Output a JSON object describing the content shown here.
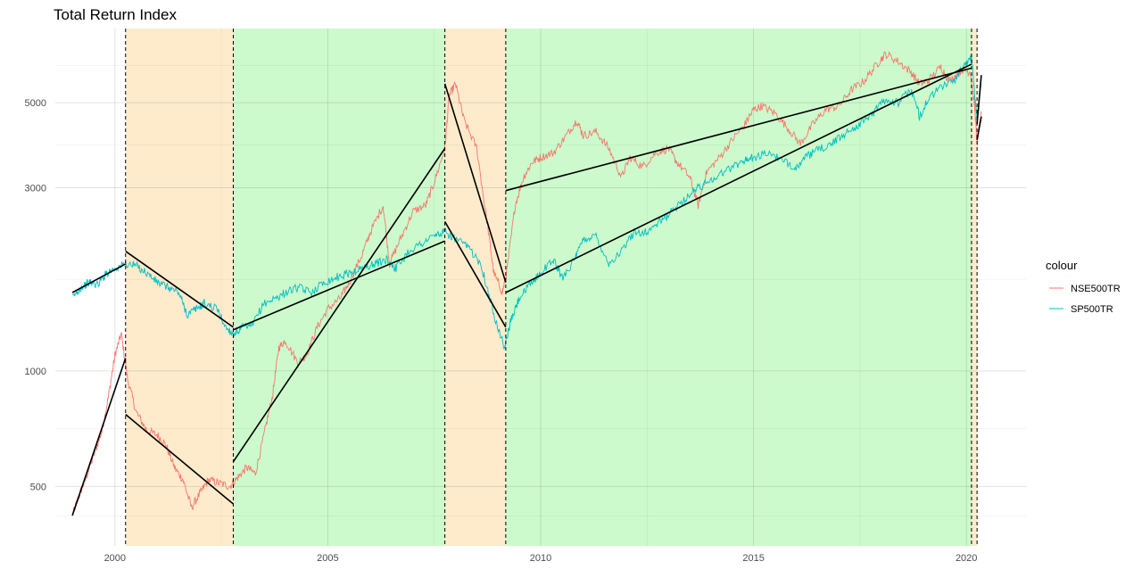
{
  "chart_data": {
    "type": "line",
    "title": "Total Return Index",
    "xlabel": "",
    "ylabel": "",
    "y_scale": "log",
    "xlim": [
      1998.6,
      2021.4
    ],
    "ylim": [
      350,
      7800
    ],
    "x_ticks": [
      {
        "value": 2000,
        "label": "2000"
      },
      {
        "value": 2005,
        "label": "2005"
      },
      {
        "value": 2010,
        "label": "2010"
      },
      {
        "value": 2015,
        "label": "2015"
      },
      {
        "value": 2020,
        "label": "2020"
      }
    ],
    "y_ticks": [
      {
        "value": 500,
        "label": "500"
      },
      {
        "value": 1000,
        "label": "1000"
      },
      {
        "value": 3000,
        "label": "3000"
      },
      {
        "value": 5000,
        "label": "5000"
      }
    ],
    "grid": true,
    "legend": {
      "title": "colour",
      "position": "right"
    },
    "regimes": [
      {
        "start": 2000.25,
        "end": 2002.78,
        "type": "bear",
        "color": "#FDEBCC"
      },
      {
        "start": 2002.78,
        "end": 2007.75,
        "type": "bull",
        "color": "#CCFACC"
      },
      {
        "start": 2007.75,
        "end": 2009.18,
        "type": "bear",
        "color": "#FDEBCC"
      },
      {
        "start": 2009.18,
        "end": 2020.12,
        "type": "bull",
        "color": "#CCFACC"
      },
      {
        "start": 2020.12,
        "end": 2020.25,
        "type": "bear",
        "color": "#FDEBCC"
      }
    ],
    "breakpoints": [
      2000.25,
      2002.78,
      2007.75,
      2009.18,
      2020.12,
      2020.25
    ],
    "series": [
      {
        "name": "NSE500TR",
        "color": "#F8766D",
        "points": [
          [
            1999.0,
            420
          ],
          [
            1999.15,
            470
          ],
          [
            1999.3,
            520
          ],
          [
            1999.5,
            600
          ],
          [
            1999.7,
            700
          ],
          [
            1999.85,
            860
          ],
          [
            2000.0,
            1100
          ],
          [
            2000.15,
            1250
          ],
          [
            2000.3,
            950
          ],
          [
            2000.5,
            780
          ],
          [
            2000.75,
            700
          ],
          [
            2001.0,
            680
          ],
          [
            2001.2,
            640
          ],
          [
            2001.4,
            560
          ],
          [
            2001.6,
            520
          ],
          [
            2001.8,
            440
          ],
          [
            2002.0,
            480
          ],
          [
            2002.2,
            520
          ],
          [
            2002.45,
            510
          ],
          [
            2002.7,
            500
          ],
          [
            2002.9,
            530
          ],
          [
            2003.1,
            560
          ],
          [
            2003.3,
            540
          ],
          [
            2003.5,
            680
          ],
          [
            2003.7,
            860
          ],
          [
            2003.85,
            1150
          ],
          [
            2004.0,
            1200
          ],
          [
            2004.3,
            1050
          ],
          [
            2004.5,
            1100
          ],
          [
            2004.75,
            1300
          ],
          [
            2005.0,
            1450
          ],
          [
            2005.3,
            1550
          ],
          [
            2005.5,
            1700
          ],
          [
            2005.8,
            2000
          ],
          [
            2006.0,
            2300
          ],
          [
            2006.3,
            2700
          ],
          [
            2006.45,
            1900
          ],
          [
            2006.7,
            2200
          ],
          [
            2007.0,
            2600
          ],
          [
            2007.3,
            2700
          ],
          [
            2007.5,
            3100
          ],
          [
            2007.75,
            3800
          ],
          [
            2007.85,
            5200
          ],
          [
            2008.0,
            5600
          ],
          [
            2008.2,
            4500
          ],
          [
            2008.5,
            3800
          ],
          [
            2008.75,
            2400
          ],
          [
            2008.9,
            1800
          ],
          [
            2009.1,
            1600
          ],
          [
            2009.2,
            1800
          ],
          [
            2009.4,
            2700
          ],
          [
            2009.6,
            3200
          ],
          [
            2009.8,
            3500
          ],
          [
            2010.0,
            3600
          ],
          [
            2010.3,
            3700
          ],
          [
            2010.6,
            4100
          ],
          [
            2010.85,
            4500
          ],
          [
            2011.0,
            4100
          ],
          [
            2011.3,
            4200
          ],
          [
            2011.6,
            3800
          ],
          [
            2011.9,
            3200
          ],
          [
            2012.1,
            3600
          ],
          [
            2012.4,
            3400
          ],
          [
            2012.7,
            3700
          ],
          [
            2013.0,
            3800
          ],
          [
            2013.2,
            3500
          ],
          [
            2013.5,
            3200
          ],
          [
            2013.7,
            2700
          ],
          [
            2013.9,
            3300
          ],
          [
            2014.2,
            3600
          ],
          [
            2014.5,
            4000
          ],
          [
            2014.8,
            4400
          ],
          [
            2015.0,
            4800
          ],
          [
            2015.2,
            4900
          ],
          [
            2015.5,
            4700
          ],
          [
            2015.8,
            4300
          ],
          [
            2016.1,
            3900
          ],
          [
            2016.4,
            4400
          ],
          [
            2016.7,
            4800
          ],
          [
            2017.0,
            4900
          ],
          [
            2017.3,
            5400
          ],
          [
            2017.6,
            5700
          ],
          [
            2017.9,
            6300
          ],
          [
            2018.1,
            6700
          ],
          [
            2018.4,
            6400
          ],
          [
            2018.7,
            6000
          ],
          [
            2018.9,
            5600
          ],
          [
            2019.1,
            5700
          ],
          [
            2019.4,
            6200
          ],
          [
            2019.6,
            5700
          ],
          [
            2019.9,
            6100
          ],
          [
            2020.1,
            6000
          ],
          [
            2020.2,
            4800
          ],
          [
            2020.25,
            3900
          ],
          [
            2020.35,
            4700
          ]
        ]
      },
      {
        "name": "SP500TR",
        "color": "#00BFC4",
        "points": [
          [
            1999.0,
            1550
          ],
          [
            1999.2,
            1650
          ],
          [
            1999.4,
            1700
          ],
          [
            1999.6,
            1680
          ],
          [
            1999.8,
            1800
          ],
          [
            2000.0,
            1850
          ],
          [
            2000.25,
            1900
          ],
          [
            2000.5,
            1880
          ],
          [
            2000.75,
            1800
          ],
          [
            2001.0,
            1700
          ],
          [
            2001.25,
            1650
          ],
          [
            2001.5,
            1600
          ],
          [
            2001.7,
            1400
          ],
          [
            2001.9,
            1450
          ],
          [
            2002.1,
            1500
          ],
          [
            2002.4,
            1450
          ],
          [
            2002.6,
            1300
          ],
          [
            2002.78,
            1250
          ],
          [
            2003.0,
            1300
          ],
          [
            2003.2,
            1300
          ],
          [
            2003.5,
            1500
          ],
          [
            2003.8,
            1550
          ],
          [
            2004.0,
            1600
          ],
          [
            2004.3,
            1650
          ],
          [
            2004.6,
            1600
          ],
          [
            2004.9,
            1700
          ],
          [
            2005.2,
            1750
          ],
          [
            2005.5,
            1800
          ],
          [
            2005.8,
            1850
          ],
          [
            2006.1,
            1900
          ],
          [
            2006.4,
            1950
          ],
          [
            2006.6,
            1850
          ],
          [
            2006.9,
            2050
          ],
          [
            2007.2,
            2150
          ],
          [
            2007.5,
            2250
          ],
          [
            2007.75,
            2300
          ],
          [
            2008.0,
            2200
          ],
          [
            2008.3,
            2100
          ],
          [
            2008.6,
            1900
          ],
          [
            2008.8,
            1550
          ],
          [
            2008.95,
            1350
          ],
          [
            2009.15,
            1150
          ],
          [
            2009.3,
            1350
          ],
          [
            2009.5,
            1550
          ],
          [
            2009.8,
            1700
          ],
          [
            2010.0,
            1800
          ],
          [
            2010.3,
            1950
          ],
          [
            2010.5,
            1750
          ],
          [
            2010.8,
            1950
          ],
          [
            2011.0,
            2200
          ],
          [
            2011.3,
            2250
          ],
          [
            2011.6,
            1900
          ],
          [
            2011.9,
            2050
          ],
          [
            2012.2,
            2300
          ],
          [
            2012.5,
            2300
          ],
          [
            2012.8,
            2450
          ],
          [
            2013.0,
            2550
          ],
          [
            2013.3,
            2750
          ],
          [
            2013.6,
            2950
          ],
          [
            2013.9,
            3100
          ],
          [
            2014.2,
            3250
          ],
          [
            2014.5,
            3400
          ],
          [
            2014.8,
            3550
          ],
          [
            2015.0,
            3600
          ],
          [
            2015.4,
            3700
          ],
          [
            2015.7,
            3500
          ],
          [
            2016.0,
            3400
          ],
          [
            2016.3,
            3650
          ],
          [
            2016.6,
            3800
          ],
          [
            2016.9,
            3950
          ],
          [
            2017.2,
            4200
          ],
          [
            2017.5,
            4400
          ],
          [
            2017.8,
            4700
          ],
          [
            2018.1,
            5100
          ],
          [
            2018.4,
            5000
          ],
          [
            2018.7,
            5400
          ],
          [
            2018.9,
            4600
          ],
          [
            2019.1,
            5100
          ],
          [
            2019.4,
            5500
          ],
          [
            2019.7,
            5700
          ],
          [
            2019.95,
            6200
          ],
          [
            2020.12,
            6600
          ],
          [
            2020.2,
            5200
          ],
          [
            2020.25,
            4500
          ],
          [
            2020.35,
            5800
          ]
        ]
      }
    ],
    "trend_lines": [
      {
        "series": "NSE500TR",
        "x": [
          1999.0,
          2000.25
        ],
        "y": [
          420,
          1080
        ]
      },
      {
        "series": "NSE500TR",
        "x": [
          2000.25,
          2002.78
        ],
        "y": [
          770,
          450
        ]
      },
      {
        "series": "NSE500TR",
        "x": [
          2002.78,
          2007.75
        ],
        "y": [
          580,
          3800
        ]
      },
      {
        "series": "NSE500TR",
        "x": [
          2007.75,
          2009.18
        ],
        "y": [
          5600,
          1700
        ]
      },
      {
        "series": "NSE500TR",
        "x": [
          2009.18,
          2020.12
        ],
        "y": [
          2950,
          6150
        ]
      },
      {
        "series": "NSE500TR",
        "x": [
          2020.25,
          2020.35
        ],
        "y": [
          4000,
          4600
        ]
      },
      {
        "series": "SP500TR",
        "x": [
          1999.0,
          2000.25
        ],
        "y": [
          1600,
          1900
        ]
      },
      {
        "series": "SP500TR",
        "x": [
          2000.25,
          2002.78
        ],
        "y": [
          2050,
          1300
        ]
      },
      {
        "series": "SP500TR",
        "x": [
          2002.78,
          2007.75
        ],
        "y": [
          1280,
          2180
        ]
      },
      {
        "series": "SP500TR",
        "x": [
          2007.75,
          2009.18
        ],
        "y": [
          2450,
          1300
        ]
      },
      {
        "series": "SP500TR",
        "x": [
          2009.18,
          2020.12
        ],
        "y": [
          1600,
          6300
        ]
      },
      {
        "series": "SP500TR",
        "x": [
          2020.25,
          2020.35
        ],
        "y": [
          4400,
          5900
        ]
      }
    ]
  }
}
